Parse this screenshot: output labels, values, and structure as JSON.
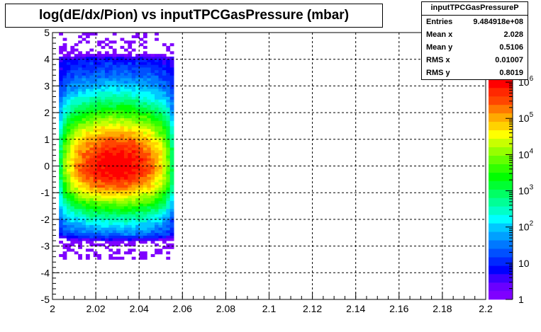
{
  "chart_data": {
    "type": "heatmap",
    "title": "log(dE/dx/Pion) vs inputTPCGasPressure (mbar)",
    "xlabel": "",
    "ylabel": "",
    "xlim": [
      2.0,
      2.2
    ],
    "ylim": [
      -5,
      5
    ],
    "x_ticks": [
      "2",
      "2.02",
      "2.04",
      "2.06",
      "2.08",
      "2.1",
      "2.12",
      "2.14",
      "2.16",
      "2.18",
      "2.2"
    ],
    "y_ticks": [
      "-5",
      "-4",
      "-3",
      "-2",
      "-1",
      "0",
      "1",
      "2",
      "3",
      "4",
      "5"
    ],
    "z_scale": "log",
    "z_ticks": [
      "1",
      "10",
      "10^2",
      "10^3",
      "10^4",
      "10^5",
      "10^6"
    ],
    "grid": true,
    "data_x_range": [
      2.003,
      2.056
    ],
    "data_y_range": [
      -3.5,
      5.0
    ],
    "peak_y": 0.0
  },
  "stats": {
    "name": "inputTPCGasPressureP",
    "rows": [
      {
        "label": "Entries",
        "value": "9.484918e+08"
      },
      {
        "label": "Mean x",
        "value": "2.028"
      },
      {
        "label": "Mean y",
        "value": "0.5106"
      },
      {
        "label": "RMS x",
        "value": "0.01007"
      },
      {
        "label": "RMS y",
        "value": "0.8019"
      }
    ]
  }
}
